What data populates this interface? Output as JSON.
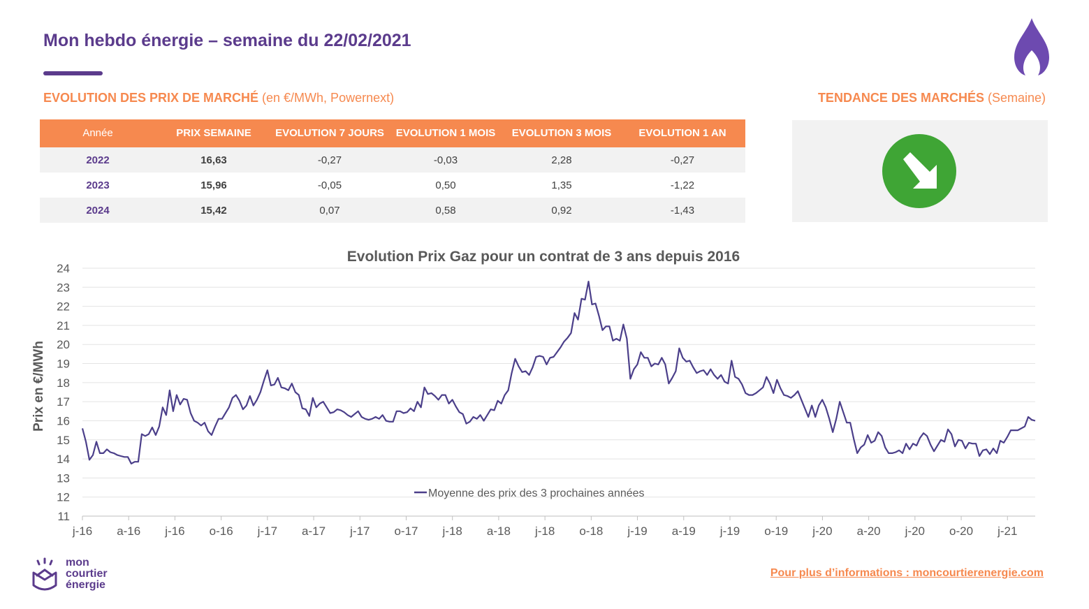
{
  "header": {
    "title": "Mon hebdo énergie – semaine du 22/02/2021"
  },
  "market": {
    "section_title": "EVOLUTION DES PRIX DE MARCHÉ",
    "section_subtitle": " (en €/MWh, Powernext)",
    "columns": [
      "Année",
      "PRIX SEMAINE",
      "EVOLUTION 7 JOURS",
      "EVOLUTION 1 MOIS",
      "EVOLUTION 3 MOIS",
      "EVOLUTION 1 AN"
    ],
    "rows": [
      [
        "2022",
        "16,63",
        "-0,27",
        "-0,03",
        "2,28",
        "-0,27"
      ],
      [
        "2023",
        "15,96",
        "-0,05",
        "0,50",
        "1,35",
        "-1,22"
      ],
      [
        "2024",
        "15,42",
        "0,07",
        "0,58",
        "0,92",
        "-1,43"
      ]
    ]
  },
  "trend": {
    "section_title": "TENDANCE DES MARCHÉS",
    "section_subtitle": " (Semaine)",
    "icon": "arrow-down-right-icon",
    "color": "#3fa535"
  },
  "chart_data": {
    "type": "line",
    "title": "Evolution Prix Gaz pour un contrat de 3 ans depuis 2016",
    "xlabel": "",
    "ylabel": "Prix en €/MWh",
    "ylim": [
      11,
      24
    ],
    "yticks": [
      "11",
      "12",
      "13",
      "14",
      "15",
      "16",
      "17",
      "18",
      "19",
      "20",
      "21",
      "22",
      "23",
      "24"
    ],
    "xticks": [
      "j-16",
      "a-16",
      "j-16",
      "o-16",
      "j-17",
      "a-17",
      "j-17",
      "o-17",
      "j-18",
      "a-18",
      "j-18",
      "o-18",
      "j-19",
      "a-19",
      "j-19",
      "o-19",
      "j-20",
      "a-20",
      "j-20",
      "o-20",
      "j-21"
    ],
    "grid": true,
    "legend": "bottom-center",
    "series": [
      {
        "name": "Moyenne des prix des 3 prochaines années",
        "color": "#4b3f8a",
        "values": [
          15.6,
          14.9,
          13.95,
          14.2,
          14.9,
          14.3,
          14.3,
          14.5,
          14.35,
          14.3,
          14.2,
          14.15,
          14.1,
          14.1,
          13.75,
          13.85,
          13.85,
          15.3,
          15.2,
          15.3,
          15.65,
          15.25,
          15.7,
          16.7,
          16.3,
          17.6,
          16.5,
          17.35,
          16.85,
          17.15,
          17.1,
          16.4,
          16.0,
          15.9,
          15.75,
          15.9,
          15.45,
          15.25,
          15.7,
          16.1,
          16.1,
          16.4,
          16.7,
          17.2,
          17.35,
          17.05,
          16.6,
          16.8,
          17.3,
          16.8,
          17.1,
          17.5,
          18.1,
          18.65,
          17.85,
          17.9,
          18.25,
          17.75,
          17.7,
          17.6,
          17.95,
          17.5,
          17.35,
          16.65,
          16.6,
          16.25,
          17.2,
          16.7,
          16.9,
          17.0,
          16.7,
          16.4,
          16.45,
          16.6,
          16.55,
          16.45,
          16.3,
          16.2,
          16.35,
          16.5,
          16.2,
          16.1,
          16.05,
          16.1,
          16.2,
          16.1,
          16.3,
          16.0,
          15.95,
          15.95,
          16.5,
          16.5,
          16.4,
          16.45,
          16.65,
          16.5,
          17.0,
          16.7,
          17.75,
          17.4,
          17.45,
          17.3,
          17.1,
          17.35,
          17.35,
          16.9,
          17.1,
          16.75,
          16.45,
          16.35,
          15.85,
          15.95,
          16.2,
          16.1,
          16.3,
          16.0,
          16.3,
          16.6,
          16.55,
          17.05,
          16.9,
          17.35,
          17.6,
          18.5,
          19.25,
          18.85,
          18.55,
          18.6,
          18.4,
          18.8,
          19.35,
          19.4,
          19.35,
          18.95,
          19.3,
          19.35,
          19.6,
          19.85,
          20.15,
          20.35,
          20.6,
          21.65,
          21.3,
          22.4,
          22.35,
          23.3,
          22.1,
          22.15,
          21.5,
          20.75,
          20.95,
          20.95,
          20.2,
          20.3,
          20.2,
          21.05,
          20.3,
          18.2,
          18.7,
          18.95,
          19.6,
          19.3,
          19.3,
          18.85,
          19.0,
          18.95,
          19.3,
          18.95,
          17.95,
          18.25,
          18.6,
          19.8,
          19.3,
          19.1,
          19.15,
          18.8,
          18.5,
          18.6,
          18.65,
          18.4,
          18.7,
          18.4,
          18.2,
          18.4,
          18.05,
          17.95,
          19.15,
          18.3,
          18.2,
          17.9,
          17.45,
          17.35,
          17.35,
          17.45,
          17.6,
          17.75,
          18.3,
          17.95,
          17.45,
          18.15,
          17.7,
          17.35,
          17.3,
          17.2,
          17.35,
          17.55,
          17.1,
          16.65,
          16.2,
          16.8,
          16.2,
          16.8,
          17.1,
          16.7,
          16.1,
          15.4,
          16.1,
          17.0,
          16.45,
          15.9,
          15.9,
          15.05,
          14.3,
          14.6,
          14.75,
          15.25,
          14.85,
          14.95,
          15.4,
          15.2,
          14.6,
          14.3,
          14.3,
          14.35,
          14.45,
          14.3,
          14.8,
          14.5,
          14.8,
          14.7,
          15.1,
          15.35,
          15.2,
          14.75,
          14.4,
          14.7,
          15.0,
          14.9,
          15.55,
          15.3,
          14.65,
          15.0,
          14.95,
          14.55,
          14.85,
          14.8,
          14.8,
          14.15,
          14.45,
          14.5,
          14.25,
          14.55,
          14.3,
          14.95,
          14.85,
          15.15,
          15.5,
          15.5,
          15.5,
          15.6,
          15.7,
          16.2,
          16.05,
          16.0
        ]
      }
    ]
  },
  "footer": {
    "logo_text": [
      "mon",
      "courtier",
      "énergie"
    ],
    "link_text": "Pour plus d’informations : moncourtierenergie.com"
  },
  "colors": {
    "brand_purple": "#5b3b8c",
    "brand_orange": "#f6894f"
  }
}
